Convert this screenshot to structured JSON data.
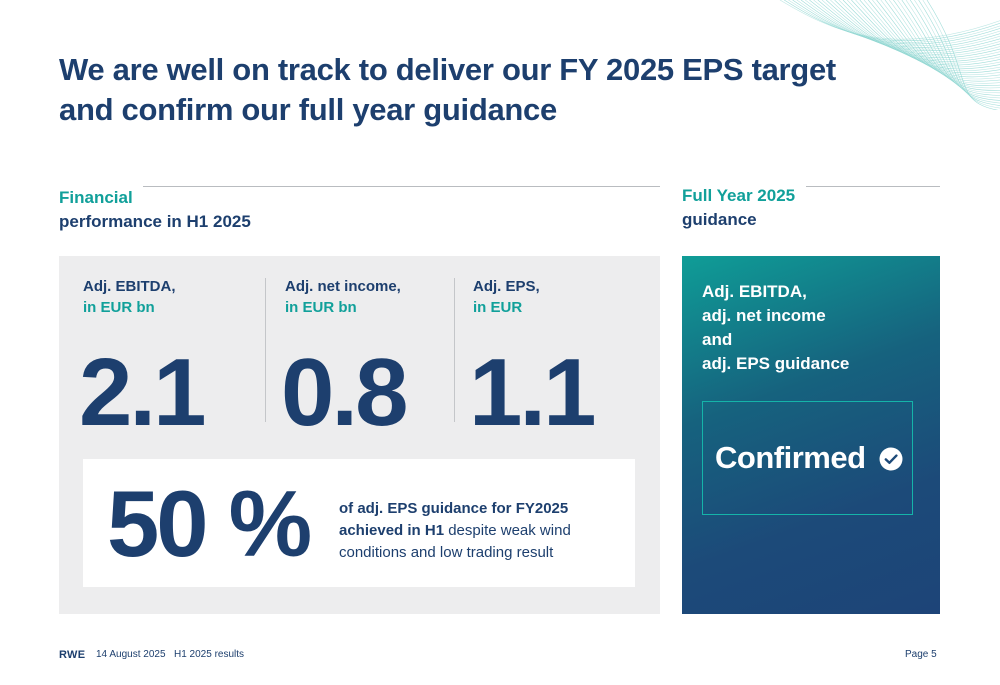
{
  "title": {
    "line1": "We are well on track to deliver our FY 2025 EPS target",
    "line2": "and confirm our full year guidance"
  },
  "left_section": {
    "heading_accent": "Financial",
    "heading_dark": "performance in H1 2025"
  },
  "right_section": {
    "heading_accent": "Full Year 2025",
    "heading_dark": "guidance"
  },
  "metrics": [
    {
      "label": "Adj. EBITDA,",
      "unit": "in EUR bn",
      "value": "2.1"
    },
    {
      "label": "Adj. net income,",
      "unit": "in EUR bn",
      "value": "0.8"
    },
    {
      "label": "Adj. EPS,",
      "unit": "in EUR",
      "value": "1.1"
    }
  ],
  "eps_progress": {
    "percent": "50 %",
    "text_bold": "of adj. EPS guidance for FY2025 achieved in H1",
    "text_rest": " despite weak wind conditions and low trading result"
  },
  "guidance": {
    "line1": "Adj. EBITDA,",
    "line2": "adj. net income",
    "line3": "and",
    "line4": "adj. EPS guidance",
    "status": "Confirmed",
    "status_icon": "check-circle-icon"
  },
  "footer": {
    "logo": "RWE",
    "date": "14 August 2025",
    "doc": "H1 2025 results",
    "page": "Page 5"
  },
  "colors": {
    "navy": "#1d3f6e",
    "teal": "#11a09a",
    "panel_gray": "#ededee"
  }
}
